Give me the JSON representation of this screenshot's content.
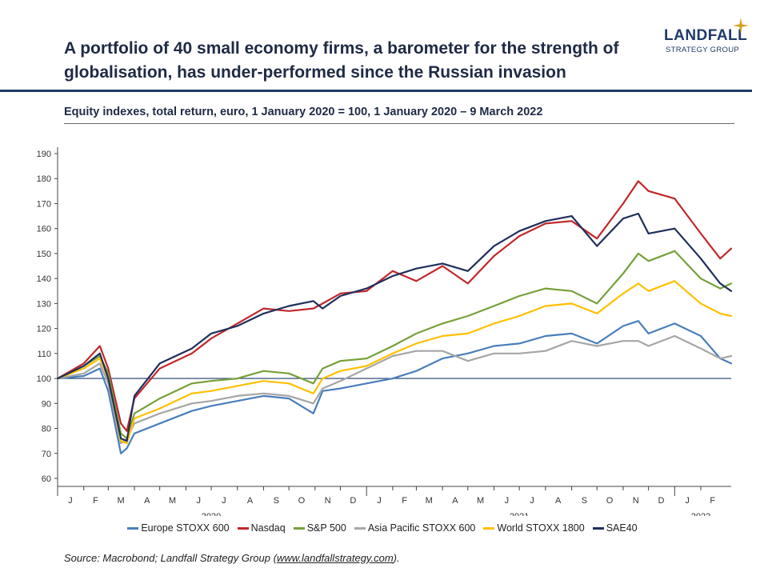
{
  "header": {
    "title": "A portfolio of 40 small economy firms, a barometer for the strength of globalisation, has under-performed since the Russian invasion",
    "subtitle": "Equity indexes, total return, euro, 1 January 2020 = 100, 1 January 2020 – 9 March 2022"
  },
  "logo": {
    "name": "LANDFALL",
    "tagline": "STRATEGY GROUP",
    "colors": {
      "text": "#1f3a68",
      "star": "#d4a017"
    }
  },
  "source": {
    "prefix": "Source: Macrobond; Landfall Strategy Group (",
    "link": "www.landfallstrategy.com",
    "suffix": ")."
  },
  "chart_data": {
    "type": "line",
    "title": "",
    "xlabel": "",
    "ylabel": "",
    "ylim": [
      60,
      190
    ],
    "yticks": [
      60,
      70,
      80,
      90,
      100,
      110,
      120,
      130,
      140,
      150,
      160,
      170,
      180,
      190
    ],
    "reference_line": 100,
    "xlim": [
      "2020-01-01",
      "2022-03-09"
    ],
    "month_labels": [
      {
        "label": "J",
        "date": "2020-01-16"
      },
      {
        "label": "F",
        "date": "2020-02-15"
      },
      {
        "label": "M",
        "date": "2020-03-16"
      },
      {
        "label": "A",
        "date": "2020-04-16"
      },
      {
        "label": "M",
        "date": "2020-05-16"
      },
      {
        "label": "J",
        "date": "2020-06-16"
      },
      {
        "label": "J",
        "date": "2020-07-16"
      },
      {
        "label": "A",
        "date": "2020-08-16"
      },
      {
        "label": "S",
        "date": "2020-09-16"
      },
      {
        "label": "O",
        "date": "2020-10-16"
      },
      {
        "label": "N",
        "date": "2020-11-16"
      },
      {
        "label": "D",
        "date": "2020-12-16"
      },
      {
        "label": "J",
        "date": "2021-01-16"
      },
      {
        "label": "F",
        "date": "2021-02-15"
      },
      {
        "label": "M",
        "date": "2021-03-16"
      },
      {
        "label": "A",
        "date": "2021-04-16"
      },
      {
        "label": "M",
        "date": "2021-05-16"
      },
      {
        "label": "J",
        "date": "2021-06-16"
      },
      {
        "label": "J",
        "date": "2021-07-16"
      },
      {
        "label": "A",
        "date": "2021-08-16"
      },
      {
        "label": "S",
        "date": "2021-09-16"
      },
      {
        "label": "O",
        "date": "2021-10-16"
      },
      {
        "label": "N",
        "date": "2021-11-16"
      },
      {
        "label": "D",
        "date": "2021-12-16"
      },
      {
        "label": "J",
        "date": "2022-01-16"
      },
      {
        "label": "F",
        "date": "2022-02-15"
      }
    ],
    "year_labels": [
      {
        "label": "2020",
        "date": "2020-07-01"
      },
      {
        "label": "2021",
        "date": "2021-07-01"
      },
      {
        "label": "2022",
        "date": "2022-02-01"
      }
    ],
    "x": [
      "2020-01-01",
      "2020-02-01",
      "2020-02-20",
      "2020-03-01",
      "2020-03-16",
      "2020-03-23",
      "2020-04-01",
      "2020-05-01",
      "2020-06-08",
      "2020-07-01",
      "2020-08-01",
      "2020-09-01",
      "2020-10-01",
      "2020-10-30",
      "2020-11-10",
      "2020-12-01",
      "2021-01-01",
      "2021-02-01",
      "2021-03-01",
      "2021-04-01",
      "2021-05-01",
      "2021-06-01",
      "2021-07-01",
      "2021-08-01",
      "2021-09-01",
      "2021-10-01",
      "2021-11-01",
      "2021-11-19",
      "2021-12-01",
      "2022-01-01",
      "2022-02-01",
      "2022-02-24",
      "2022-03-09"
    ],
    "series": [
      {
        "name": "Europe STOXX 600",
        "color": "#4a7ebb",
        "values": [
          100,
          101,
          104,
          95,
          70,
          72,
          78,
          82,
          87,
          89,
          91,
          93,
          92,
          86,
          95,
          96,
          98,
          100,
          103,
          108,
          110,
          113,
          114,
          117,
          118,
          114,
          121,
          123,
          118,
          122,
          117,
          108,
          106
        ]
      },
      {
        "name": "Nasdaq",
        "color": "#c0282d",
        "values": [
          100,
          106,
          113,
          104,
          82,
          79,
          92,
          104,
          110,
          116,
          122,
          128,
          127,
          128,
          130,
          134,
          135,
          143,
          139,
          145,
          138,
          149,
          157,
          162,
          163,
          156,
          170,
          179,
          175,
          172,
          158,
          148,
          152
        ]
      },
      {
        "name": "S&P 500",
        "color": "#77a03a",
        "values": [
          100,
          105,
          109,
          102,
          78,
          76,
          86,
          92,
          98,
          99,
          100,
          103,
          102,
          98,
          104,
          107,
          108,
          113,
          118,
          122,
          125,
          129,
          133,
          136,
          135,
          130,
          142,
          150,
          147,
          151,
          140,
          136,
          138
        ]
      },
      {
        "name": "Asia Pacific STOXX 600",
        "color": "#a6a6a6",
        "values": [
          100,
          102,
          106,
          98,
          74,
          76,
          82,
          86,
          90,
          91,
          93,
          94,
          93,
          90,
          96,
          99,
          104,
          109,
          111,
          111,
          107,
          110,
          110,
          111,
          115,
          113,
          115,
          115,
          113,
          117,
          112,
          108,
          109
        ]
      },
      {
        "name": "World STOXX 1800",
        "color": "#ffc000",
        "values": [
          100,
          104,
          108,
          100,
          75,
          74,
          84,
          88,
          94,
          95,
          97,
          99,
          98,
          94,
          100,
          103,
          105,
          110,
          114,
          117,
          118,
          122,
          125,
          129,
          130,
          126,
          134,
          138,
          135,
          139,
          130,
          126,
          125
        ]
      },
      {
        "name": "SAE40",
        "color": "#1f2f5a",
        "values": [
          100,
          105,
          110,
          100,
          76,
          75,
          93,
          106,
          112,
          118,
          121,
          126,
          129,
          131,
          128,
          133,
          136,
          141,
          144,
          146,
          143,
          153,
          159,
          163,
          165,
          153,
          164,
          166,
          158,
          160,
          148,
          138,
          135
        ]
      }
    ],
    "legend_position": "bottom",
    "grid": false
  }
}
